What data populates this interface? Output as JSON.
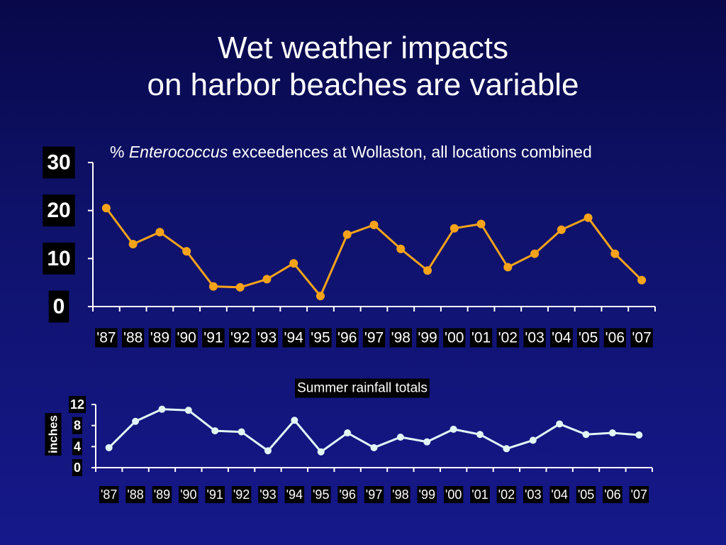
{
  "slide": {
    "title_line1": "Wet weather impacts",
    "title_line2": "on harbor beaches are variable"
  },
  "colors": {
    "background": "#0f126a",
    "enterococcus_line": "#f7a31a",
    "rainfall_line": "#e2f6f5",
    "text": "#ffffff",
    "label_box": "#000000"
  },
  "chart_data": [
    {
      "type": "line",
      "title_prefix": "% ",
      "title_italic": "Enterococcus",
      "title_suffix": " exceedences at Wollaston, all locations combined",
      "xlabel": "",
      "ylabel": "",
      "categories": [
        "'87",
        "'88",
        "'89",
        "'90",
        "'91",
        "'92",
        "'93",
        "'94",
        "'95",
        "'96",
        "'97",
        "'98",
        "'99",
        "'00",
        "'01",
        "'02",
        "'03",
        "'04",
        "'05",
        "'06",
        "'07"
      ],
      "series": [
        {
          "values": [
            20.5,
            13,
            15.5,
            11.5,
            4.2,
            4,
            5.7,
            9,
            2.2,
            15,
            17,
            12,
            7.5,
            16.3,
            17.2,
            8.2,
            11,
            16,
            18.5,
            11,
            5.5
          ]
        }
      ],
      "ylim": [
        0,
        30
      ],
      "yticks": [
        0,
        10,
        20,
        30
      ],
      "grid": false,
      "legend": "none"
    },
    {
      "type": "line",
      "title": "Summer rainfall totals",
      "xlabel": "",
      "ylabel": "inches",
      "categories": [
        "'87",
        "'88",
        "'89",
        "'90",
        "'91",
        "'92",
        "'93",
        "'94",
        "'95",
        "'96",
        "'97",
        "'98",
        "'99",
        "'00",
        "'01",
        "'02",
        "'03",
        "'04",
        "'05",
        "'06",
        "'07"
      ],
      "series": [
        {
          "values": [
            3.8,
            8.8,
            11.1,
            10.9,
            7,
            6.8,
            3.2,
            9,
            3,
            6.6,
            3.8,
            5.8,
            4.9,
            7.3,
            6.3,
            3.6,
            5.2,
            8.3,
            6.3,
            6.6,
            6.2
          ]
        }
      ],
      "ylim": [
        0,
        12
      ],
      "yticks": [
        0,
        4,
        8,
        12
      ],
      "grid": false,
      "legend": "none"
    }
  ]
}
